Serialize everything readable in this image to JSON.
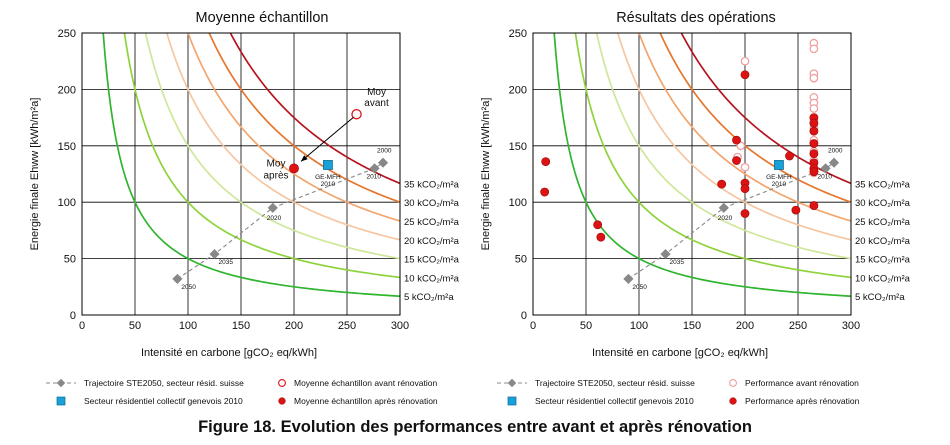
{
  "figure_caption": "Figure 18. Evolution des performances entre avant et après rénovation",
  "colors": {
    "iso": [
      "#2fb52f",
      "#8fd33c",
      "#cfe79a",
      "#f6c6a2",
      "#f2a56d",
      "#e6762d",
      "#b5151e"
    ],
    "trajectory": "#888888",
    "ge_mfh": "#1aa0d8",
    "after": "#dd1313",
    "before_left": "#dd1313",
    "before_right": "#ef9f9f"
  },
  "chart_data": [
    {
      "type": "scatter",
      "title": "Moyenne échantillon",
      "xlabel": "Intensité en carbone [gCO₂ eq/kWh]",
      "ylabel": "Energie finale Ehww [kWh/m²a]",
      "xlim": [
        0,
        300
      ],
      "ylim": [
        0,
        250
      ],
      "xticks": [
        "0",
        "50",
        "100",
        "150",
        "200",
        "250",
        "300"
      ],
      "yticks": [
        "0",
        "50",
        "100",
        "150",
        "200",
        "250"
      ],
      "grid": true,
      "iso_curves": [
        {
          "k": 5,
          "label": "5 kCO₂/m²a"
        },
        {
          "k": 10,
          "label": "10 kCO₂/m²a"
        },
        {
          "k": 15,
          "label": "15 kCO₂/m²a"
        },
        {
          "k": 20,
          "label": "20 kCO₂/m²a"
        },
        {
          "k": 25,
          "label": "25 kCO₂/m²a"
        },
        {
          "k": 30,
          "label": "30 kCO₂/m²a"
        },
        {
          "k": 35,
          "label": "35 kCO₂/m²a"
        }
      ],
      "trajectory": {
        "name": "Trajectoire STE2050, secteur résid. suisse",
        "points": [
          {
            "x": 90,
            "y": 32,
            "label": "2050"
          },
          {
            "x": 125,
            "y": 54,
            "label": "2035"
          },
          {
            "x": 180,
            "y": 95,
            "label": "2020"
          },
          {
            "x": 276,
            "y": 130,
            "label": "2010"
          },
          {
            "x": 284,
            "y": 135,
            "label": "2000"
          }
        ]
      },
      "ge_mfh": {
        "name": "Secteur résidentiel collectif genevois 2010",
        "x": 232,
        "y": 133,
        "label": "GE-MFH 2010"
      },
      "before_series": {
        "name": "Moyenne échantillon avant rénovation",
        "points": [
          {
            "x": 259,
            "y": 178
          }
        ]
      },
      "after_series": {
        "name": "Moyenne échantillon après rénovation",
        "points": [
          {
            "x": 200,
            "y": 130
          }
        ]
      },
      "annotations": [
        {
          "text": "Moy avant",
          "x": 259,
          "y": 178
        },
        {
          "text": "Moy après",
          "x": 200,
          "y": 130
        }
      ]
    },
    {
      "type": "scatter",
      "title": "Résultats des opérations",
      "xlabel": "Intensité en carbone [gCO₂ eq/kWh]",
      "ylabel": "Energie finale Ehww [kWh/m²a]",
      "xlim": [
        0,
        300
      ],
      "ylim": [
        0,
        250
      ],
      "xticks": [
        "0",
        "50",
        "100",
        "150",
        "200",
        "250",
        "300"
      ],
      "yticks": [
        "0",
        "50",
        "100",
        "150",
        "200",
        "250"
      ],
      "grid": true,
      "iso_curves": [
        {
          "k": 5,
          "label": "5 kCO₂/m²a"
        },
        {
          "k": 10,
          "label": "10 kCO₂/m²a"
        },
        {
          "k": 15,
          "label": "15 kCO₂/m²a"
        },
        {
          "k": 20,
          "label": "20 kCO₂/m²a"
        },
        {
          "k": 25,
          "label": "25 kCO₂/m²a"
        },
        {
          "k": 30,
          "label": "30 kCO₂/m²a"
        },
        {
          "k": 35,
          "label": "35 kCO₂/m²a"
        }
      ],
      "trajectory": {
        "name": "Trajectoire STE2050, secteur résid. suisse",
        "points": [
          {
            "x": 90,
            "y": 32,
            "label": "2050"
          },
          {
            "x": 125,
            "y": 54,
            "label": "2035"
          },
          {
            "x": 180,
            "y": 95,
            "label": "2020"
          },
          {
            "x": 276,
            "y": 130,
            "label": "2010"
          },
          {
            "x": 284,
            "y": 135,
            "label": "2000"
          }
        ]
      },
      "ge_mfh": {
        "name": "Secteur résidentiel collectif genevois 2010",
        "x": 232,
        "y": 133,
        "label": "GE-MFH 2010"
      },
      "before_series": {
        "name": "Performance avant rénovation",
        "points": [
          {
            "x": 200,
            "y": 225
          },
          {
            "x": 265,
            "y": 241
          },
          {
            "x": 265,
            "y": 236
          },
          {
            "x": 265,
            "y": 214
          },
          {
            "x": 265,
            "y": 210
          },
          {
            "x": 265,
            "y": 193
          },
          {
            "x": 265,
            "y": 188
          },
          {
            "x": 265,
            "y": 183
          },
          {
            "x": 265,
            "y": 172
          },
          {
            "x": 265,
            "y": 166
          },
          {
            "x": 265,
            "y": 155
          },
          {
            "x": 265,
            "y": 145
          },
          {
            "x": 265,
            "y": 137
          },
          {
            "x": 265,
            "y": 130
          },
          {
            "x": 265,
            "y": 126
          },
          {
            "x": 200,
            "y": 131
          },
          {
            "x": 196,
            "y": 150
          },
          {
            "x": 193,
            "y": 140
          }
        ]
      },
      "after_series": {
        "name": "Performance après rénovation",
        "points": [
          {
            "x": 200,
            "y": 213
          },
          {
            "x": 192,
            "y": 155
          },
          {
            "x": 192,
            "y": 137
          },
          {
            "x": 178,
            "y": 116
          },
          {
            "x": 200,
            "y": 117
          },
          {
            "x": 200,
            "y": 112
          },
          {
            "x": 200,
            "y": 90
          },
          {
            "x": 242,
            "y": 141
          },
          {
            "x": 248,
            "y": 93
          },
          {
            "x": 265,
            "y": 175
          },
          {
            "x": 265,
            "y": 170
          },
          {
            "x": 265,
            "y": 163
          },
          {
            "x": 265,
            "y": 152
          },
          {
            "x": 265,
            "y": 143
          },
          {
            "x": 265,
            "y": 135
          },
          {
            "x": 265,
            "y": 130
          },
          {
            "x": 265,
            "y": 127
          },
          {
            "x": 265,
            "y": 97
          },
          {
            "x": 12,
            "y": 136
          },
          {
            "x": 11,
            "y": 109
          },
          {
            "x": 61,
            "y": 80
          },
          {
            "x": 64,
            "y": 69
          }
        ]
      }
    }
  ]
}
